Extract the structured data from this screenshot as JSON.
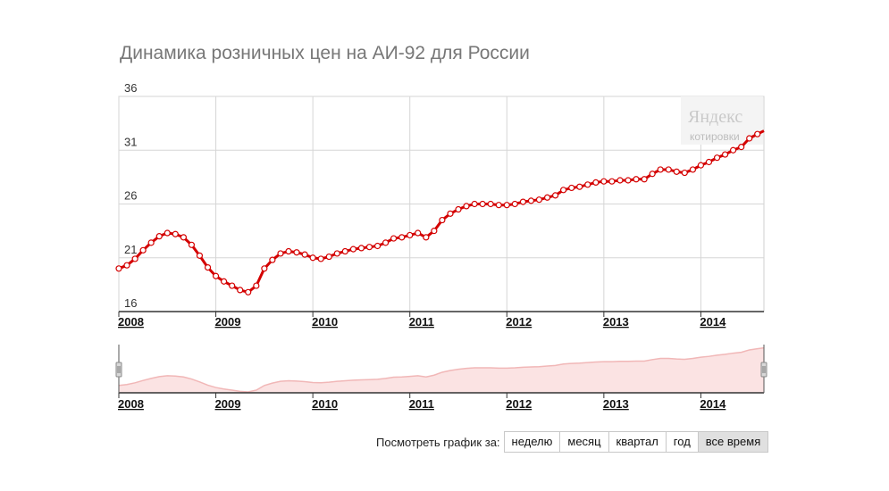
{
  "title": "Динамика розничных цен на АИ-92 для России",
  "watermark": {
    "brand": "Яндекс",
    "sub": "котировки"
  },
  "chart_data": {
    "type": "line",
    "title": "Динамика розничных цен на АИ-92 для России",
    "xlabel": "",
    "ylabel": "",
    "ylim": [
      16,
      36
    ],
    "yticks": [
      16,
      21,
      26,
      31,
      36
    ],
    "x_tick_labels": [
      "2008",
      "2009",
      "2010",
      "2011",
      "2012",
      "2013",
      "2014"
    ],
    "xlim": [
      2008.0,
      2014.65
    ],
    "grid": true,
    "color": "#d40000",
    "series": [
      {
        "x": [
          2008.0,
          2008.083,
          2008.167,
          2008.25,
          2008.333,
          2008.417,
          2008.5,
          2008.583,
          2008.667,
          2008.75,
          2008.833,
          2008.917,
          2009.0,
          2009.083,
          2009.167,
          2009.25,
          2009.333,
          2009.417,
          2009.5,
          2009.583,
          2009.667,
          2009.75,
          2009.833,
          2009.917,
          2010.0,
          2010.083,
          2010.167,
          2010.25,
          2010.333,
          2010.417,
          2010.5,
          2010.583,
          2010.667,
          2010.75,
          2010.833,
          2010.917,
          2011.0,
          2011.083,
          2011.167,
          2011.25,
          2011.333,
          2011.417,
          2011.5,
          2011.583,
          2011.667,
          2011.75,
          2011.833,
          2011.917,
          2012.0,
          2012.083,
          2012.167,
          2012.25,
          2012.333,
          2012.417,
          2012.5,
          2012.583,
          2012.667,
          2012.75,
          2012.833,
          2012.917,
          2013.0,
          2013.083,
          2013.167,
          2013.25,
          2013.333,
          2013.417,
          2013.5,
          2013.583,
          2013.667,
          2013.75,
          2013.833,
          2013.917,
          2014.0,
          2014.083,
          2014.167,
          2014.25,
          2014.333,
          2014.417,
          2014.5,
          2014.583,
          2014.65
        ],
        "values": [
          20.0,
          20.3,
          20.9,
          21.7,
          22.4,
          23.0,
          23.3,
          23.2,
          22.9,
          22.2,
          21.2,
          20.1,
          19.3,
          18.8,
          18.4,
          18.0,
          17.8,
          18.4,
          20.0,
          20.8,
          21.4,
          21.6,
          21.5,
          21.3,
          21.0,
          20.9,
          21.1,
          21.4,
          21.6,
          21.8,
          21.9,
          22.0,
          22.1,
          22.4,
          22.8,
          22.9,
          23.1,
          23.3,
          22.9,
          23.5,
          24.5,
          25.1,
          25.5,
          25.8,
          26.0,
          26.0,
          26.0,
          25.9,
          25.9,
          26.0,
          26.2,
          26.3,
          26.4,
          26.6,
          26.8,
          27.3,
          27.5,
          27.6,
          27.8,
          28.0,
          28.1,
          28.1,
          28.2,
          28.2,
          28.3,
          28.3,
          28.8,
          29.2,
          29.2,
          29.0,
          28.9,
          29.2,
          29.6,
          29.9,
          30.3,
          30.6,
          31.0,
          31.3,
          32.1,
          32.5,
          32.8
        ]
      }
    ],
    "navigator": {
      "x_tick_labels": [
        "2008",
        "2009",
        "2010",
        "2011",
        "2012",
        "2013",
        "2014"
      ],
      "fill_color": "#fbe3e3",
      "line_color": "#f1b7b7"
    }
  },
  "period_selector": {
    "label": "Посмотреть график за:",
    "options": [
      "неделю",
      "месяц",
      "квартал",
      "год",
      "все время"
    ],
    "active": "все время"
  }
}
